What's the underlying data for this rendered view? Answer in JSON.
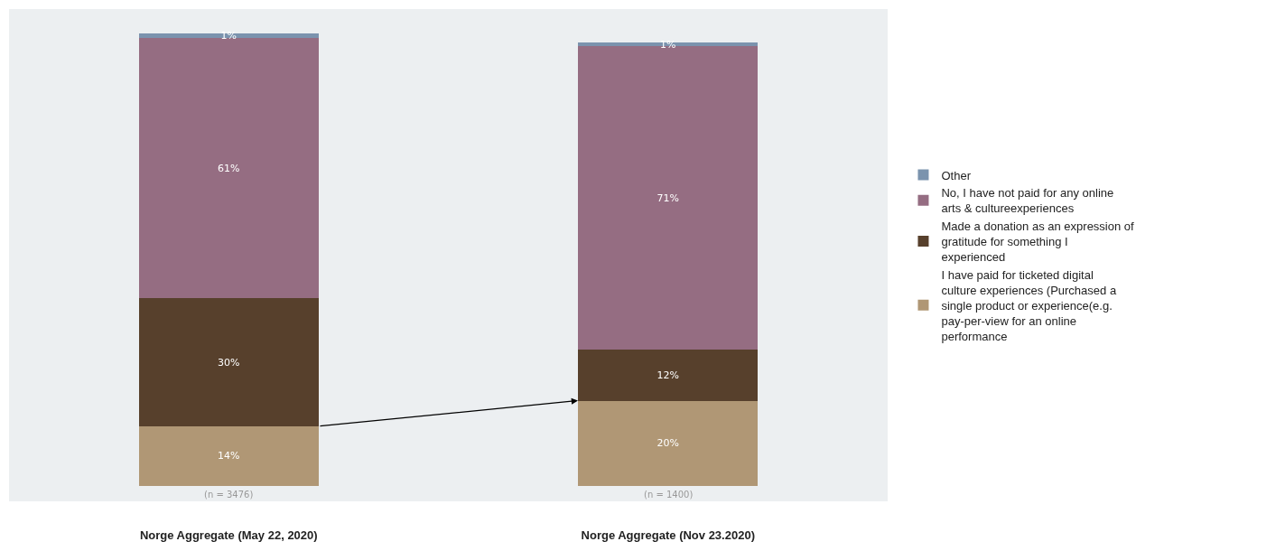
{
  "chart_data": {
    "type": "bar",
    "stacked": true,
    "categories": [
      "Norge Aggregate (May 22, 2020)",
      "Norge Aggregate (Nov 23.2020)"
    ],
    "series": [
      {
        "name": "I have paid for ticketed digital culture experiences (Purchased a single product or experience(e.g. pay-per-view for an online performance",
        "color": "#b09775",
        "values": [
          14,
          20
        ],
        "value_labels": [
          "14%",
          "20%"
        ]
      },
      {
        "name": "Made a donation as an expression of gratitude for something I experienced",
        "color": "#57402c",
        "values": [
          30,
          12
        ],
        "value_labels": [
          "30%",
          "12%"
        ]
      },
      {
        "name": "No, I have not paid for any online arts & cultureexperiences",
        "color": "#956d82",
        "values": [
          61,
          71
        ],
        "value_labels": [
          "61%",
          "71%"
        ]
      },
      {
        "name": "Other",
        "color": "#7b93ae",
        "values": [
          1,
          1
        ],
        "value_labels": [
          "1%",
          "1%"
        ]
      }
    ],
    "annotations": [
      "(n = 3476)",
      "(n = 1400)"
    ],
    "legend": "right",
    "grid": false
  }
}
